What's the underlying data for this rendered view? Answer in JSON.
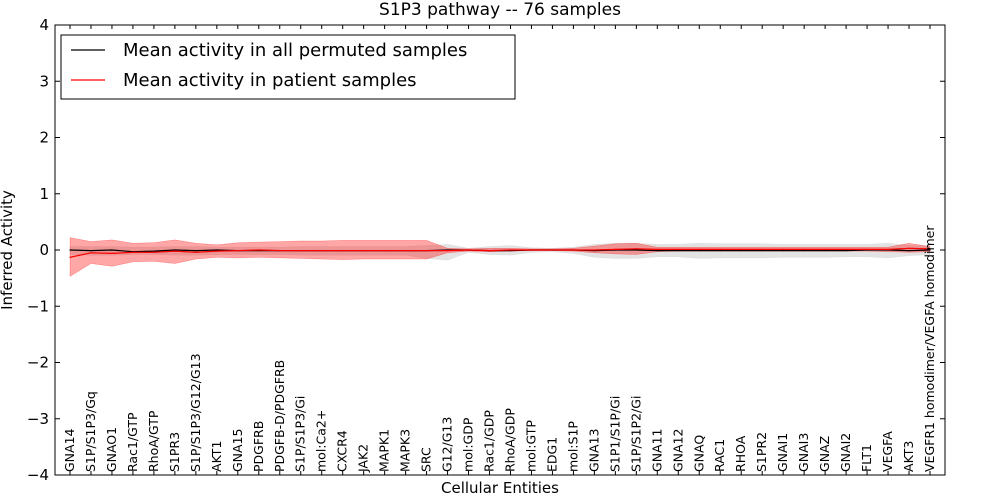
{
  "chart_data": {
    "type": "line",
    "title": "S1P3 pathway -- 76 samples",
    "xlabel": "Cellular Entities",
    "ylabel": "Inferred Activity",
    "ylim": [
      -4,
      4
    ],
    "yticks": [
      -4,
      -3,
      -2,
      -1,
      0,
      1,
      2,
      3,
      4
    ],
    "ytick_labels": [
      "−4",
      "−3",
      "−2",
      "−1",
      "0",
      "1",
      "2",
      "3",
      "4"
    ],
    "grid": false,
    "legend_position": "top-left",
    "categories": [
      "GNA14",
      "S1P/S1P3/Gq",
      "GNAO1",
      "Rac1/GTP",
      "RhoA/GTP",
      "S1PR3",
      "S1P/S1P3/G12/G13",
      "AKT1",
      "GNA15",
      "PDGFRB",
      "PDGFB-D/PDGFRB",
      "S1P/S1P3/Gi",
      "mol:Ca2+",
      "CXCR4",
      "JAK2",
      "MAPK1",
      "MAPK3",
      "SRC",
      "G12/G13",
      "mol:GDP",
      "Rac1/GDP",
      "RhoA/GDP",
      "mol:GTP",
      "EDG1",
      "mol:S1P",
      "GNA13",
      "S1P1/S1P/Gi",
      "S1P/S1P2/Gi",
      "GNA11",
      "GNA12",
      "GNAQ",
      "RAC1",
      "RHOA",
      "S1PR2",
      "GNAI1",
      "GNAI3",
      "GNAZ",
      "GNAI2",
      "FLT1",
      "VEGFA",
      "AKT3",
      "VEGFR1 homodimer/VEGFA homodimer"
    ],
    "series": [
      {
        "name": "Mean activity in all permuted samples",
        "color": "#000000",
        "band_color": "#d9d9d9",
        "values": [
          0.0,
          -0.01,
          0.0,
          -0.03,
          -0.02,
          0.0,
          -0.01,
          0.0,
          -0.01,
          -0.01,
          -0.01,
          -0.01,
          -0.01,
          -0.01,
          -0.01,
          -0.01,
          -0.01,
          -0.01,
          0.0,
          0.0,
          -0.01,
          -0.01,
          0.0,
          0.0,
          0.0,
          -0.01,
          0.0,
          0.0,
          -0.01,
          -0.01,
          -0.01,
          -0.01,
          -0.01,
          -0.01,
          -0.01,
          -0.01,
          -0.01,
          -0.01,
          0.0,
          0.0,
          -0.01,
          0.0
        ],
        "lower": [
          -0.08,
          -0.09,
          -0.09,
          -0.08,
          -0.08,
          -0.09,
          -0.09,
          -0.08,
          -0.08,
          -0.08,
          -0.08,
          -0.09,
          -0.09,
          -0.09,
          -0.09,
          -0.09,
          -0.09,
          -0.15,
          -0.18,
          -0.04,
          -0.08,
          -0.09,
          -0.04,
          -0.03,
          -0.06,
          -0.13,
          -0.15,
          -0.15,
          -0.12,
          -0.12,
          -0.15,
          -0.14,
          -0.14,
          -0.14,
          -0.13,
          -0.13,
          -0.13,
          -0.12,
          -0.12,
          -0.14,
          -0.1,
          -0.08
        ],
        "upper": [
          0.06,
          0.06,
          0.06,
          0.05,
          0.05,
          0.06,
          0.06,
          0.05,
          0.05,
          0.05,
          0.05,
          0.06,
          0.06,
          0.06,
          0.06,
          0.06,
          0.06,
          0.08,
          0.1,
          0.03,
          0.06,
          0.08,
          0.04,
          0.03,
          0.05,
          0.1,
          0.12,
          0.12,
          0.1,
          0.1,
          0.12,
          0.11,
          0.11,
          0.11,
          0.1,
          0.1,
          0.1,
          0.1,
          0.1,
          0.12,
          0.08,
          0.07
        ]
      },
      {
        "name": "Mean activity in patient samples",
        "color": "#ff0000",
        "band_color": "#ff0000",
        "dotted_reference": true,
        "values": [
          -0.13,
          -0.05,
          -0.06,
          -0.04,
          -0.04,
          -0.02,
          -0.04,
          -0.02,
          -0.01,
          0.0,
          -0.01,
          -0.01,
          -0.01,
          -0.01,
          -0.01,
          -0.01,
          -0.01,
          -0.01,
          -0.01,
          0.0,
          -0.01,
          0.0,
          0.0,
          0.0,
          0.0,
          0.0,
          0.01,
          0.02,
          0.01,
          0.01,
          0.01,
          0.01,
          0.01,
          0.01,
          0.01,
          0.01,
          0.01,
          0.01,
          0.01,
          0.01,
          0.03,
          0.02
        ],
        "lower": [
          -0.47,
          -0.24,
          -0.29,
          -0.21,
          -0.2,
          -0.24,
          -0.16,
          -0.13,
          -0.14,
          -0.13,
          -0.14,
          -0.15,
          -0.16,
          -0.17,
          -0.16,
          -0.16,
          -0.16,
          -0.16,
          -0.05,
          -0.02,
          -0.03,
          -0.02,
          -0.01,
          -0.01,
          -0.02,
          -0.05,
          -0.07,
          -0.08,
          -0.03,
          -0.02,
          -0.02,
          -0.02,
          -0.02,
          -0.02,
          -0.02,
          -0.02,
          -0.02,
          -0.02,
          -0.02,
          -0.03,
          -0.04,
          -0.03
        ],
        "upper": [
          0.22,
          0.15,
          0.18,
          0.12,
          0.13,
          0.18,
          0.12,
          0.09,
          0.13,
          0.14,
          0.15,
          0.16,
          0.16,
          0.17,
          0.17,
          0.17,
          0.17,
          0.17,
          0.03,
          0.02,
          0.03,
          0.03,
          0.02,
          0.02,
          0.03,
          0.07,
          0.11,
          0.12,
          0.05,
          0.05,
          0.05,
          0.05,
          0.05,
          0.05,
          0.05,
          0.05,
          0.05,
          0.05,
          0.05,
          0.05,
          0.12,
          0.06
        ]
      }
    ]
  }
}
